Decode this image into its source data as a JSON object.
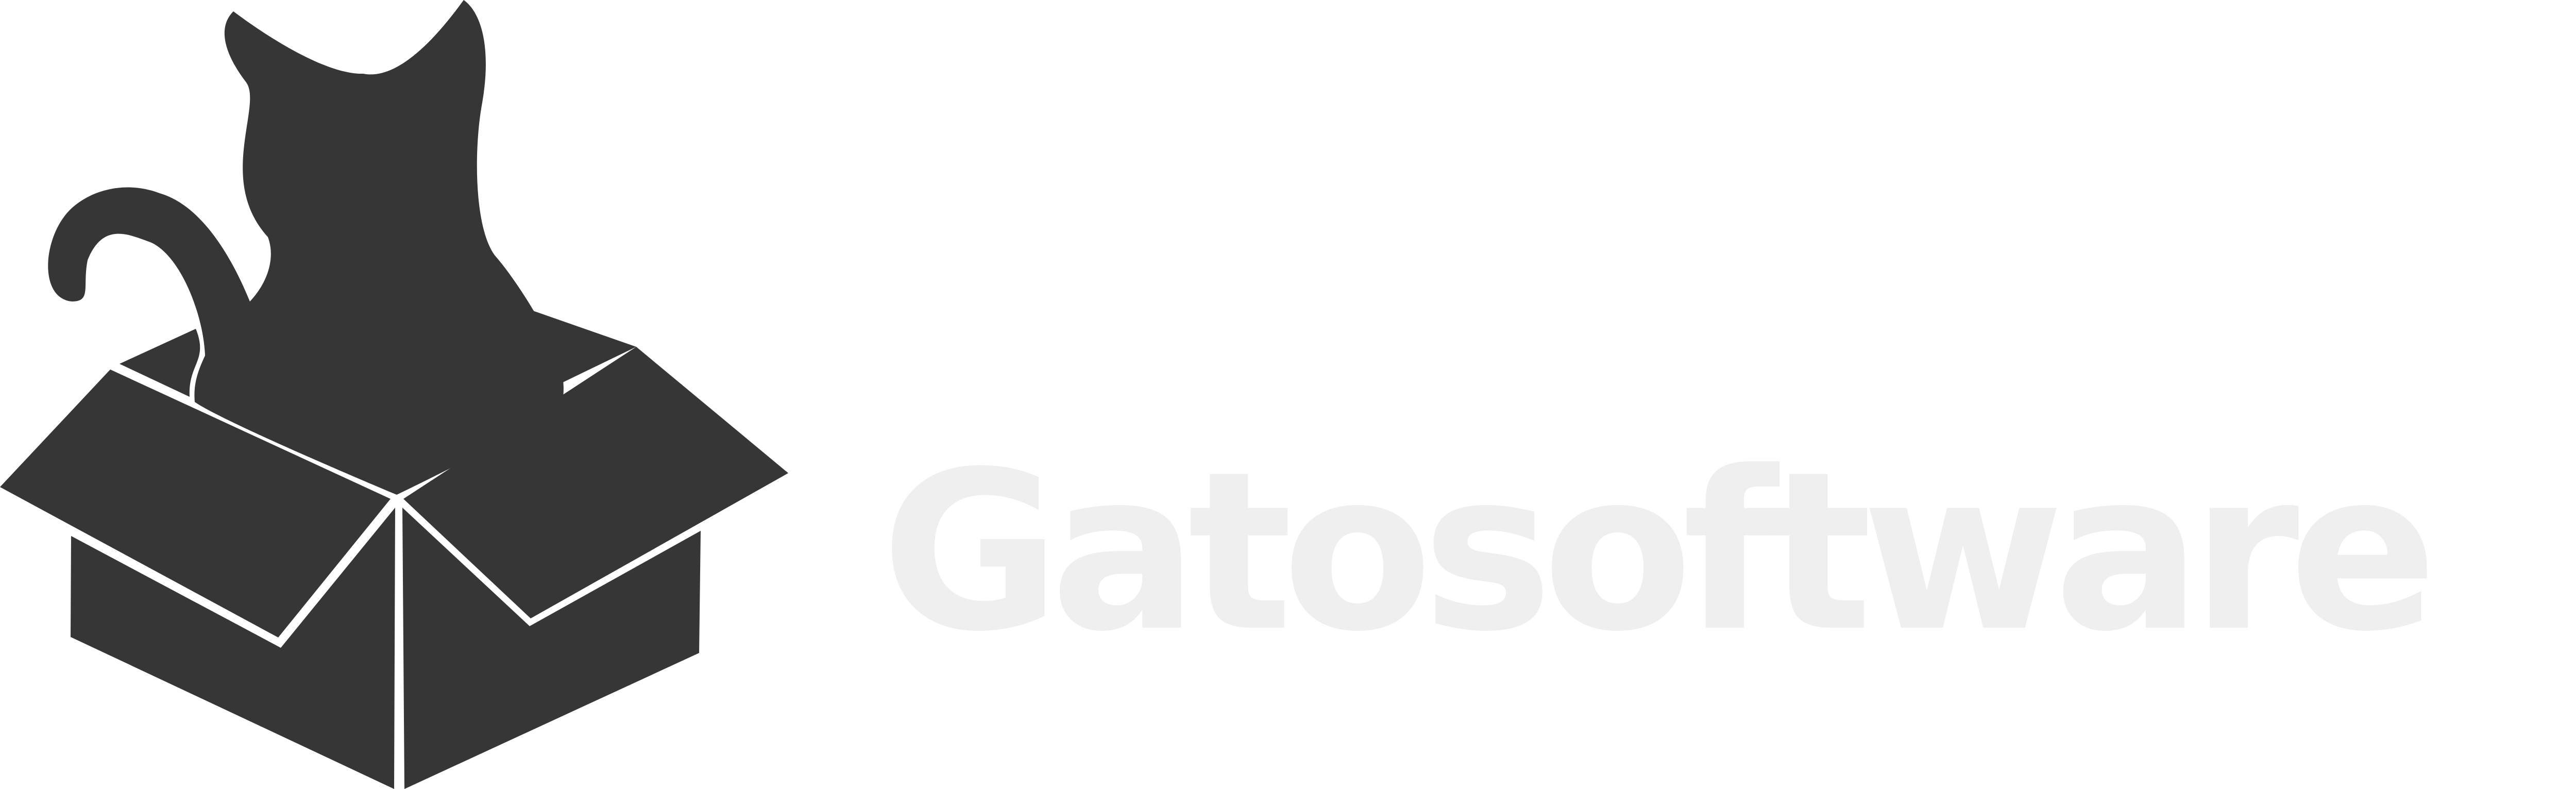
{
  "brand": {
    "name": "Gatosoftware",
    "mark_icon": "cat-in-box-icon",
    "colors": {
      "mark": "#363636",
      "wordmark": "#EFEFEF"
    }
  }
}
